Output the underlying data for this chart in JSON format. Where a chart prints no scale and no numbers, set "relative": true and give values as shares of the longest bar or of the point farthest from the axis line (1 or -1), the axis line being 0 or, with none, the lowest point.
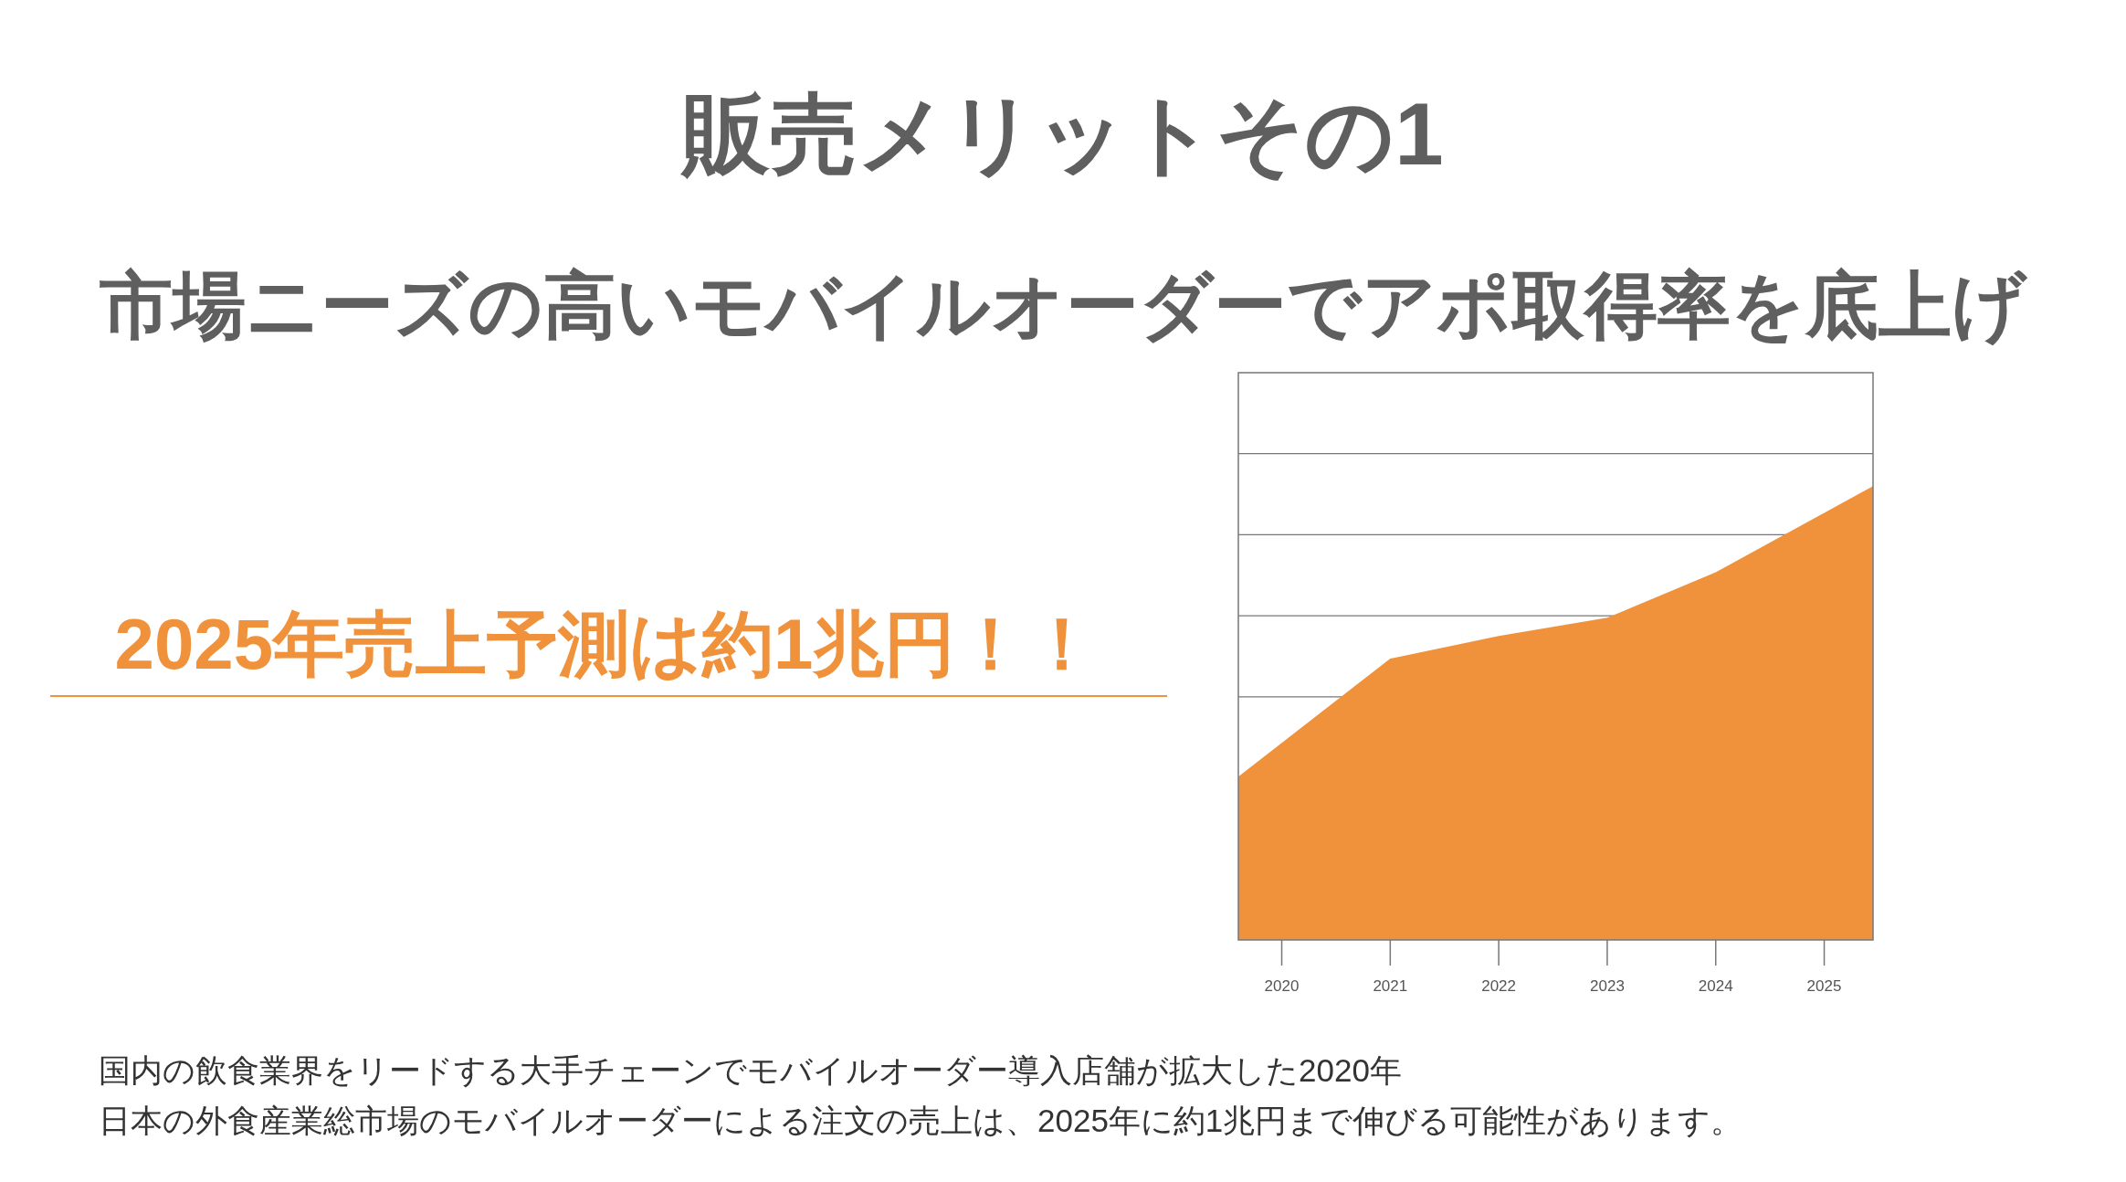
{
  "chart_data": {
    "type": "area",
    "title": "販売メリットその1",
    "subtitle": "市場ニーズの高いモバイルオーダーでアポ取得率を底上げ",
    "annotations": [
      "2025年売上予測は約1兆円！！",
      "国内の飲食業界をリードする大手チェーンでモバイルオーダー導入店舗が拡大した2020年",
      "日本の外食産業総市場のモバイルオーダーによる注文の売上は、2025年に約1兆円まで伸びる可能性があります。"
    ],
    "x": [
      2019.6,
      2021,
      2022,
      2023,
      2024,
      2025.45
    ],
    "series": [
      {
        "color": "#f0923b",
        "values": [
          0.36,
          0.62,
          0.67,
          0.71,
          0.81,
          1
        ]
      }
    ],
    "relative": true,
    "xlim": [
      2019.6,
      2025.45
    ],
    "xticks": [
      2020,
      2021,
      2022,
      2023,
      2024,
      2025
    ],
    "grid": "y"
  }
}
